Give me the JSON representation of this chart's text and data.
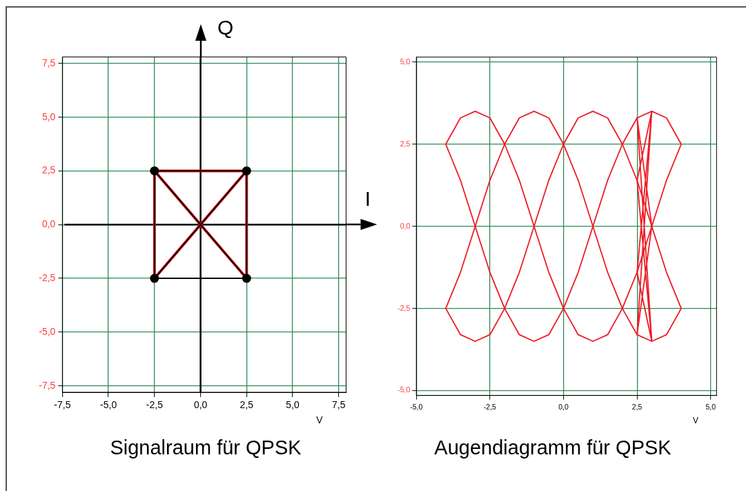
{
  "chart_data": [
    {
      "type": "line",
      "title": "Signalraum für QPSK",
      "xlabel": "V",
      "marker": "none",
      "grid": true,
      "xlim": [
        -7.5,
        7.9
      ],
      "ylim": [
        -7.8,
        7.8
      ],
      "xticks": [
        {
          "value": -7.5,
          "label": "-7,5"
        },
        {
          "value": -5,
          "label": "-5,0"
        },
        {
          "value": -2.5,
          "label": "-2,5"
        },
        {
          "value": 0,
          "label": "0,0"
        },
        {
          "value": 2.5,
          "label": "2,5"
        },
        {
          "value": 5,
          "label": "5,0"
        },
        {
          "value": 7.5,
          "label": "7,5"
        }
      ],
      "yticks": [
        {
          "value": -7.5,
          "label": "-7,5"
        },
        {
          "value": -5,
          "label": "-5,0"
        },
        {
          "value": -2.5,
          "label": "-2,5"
        },
        {
          "value": 0,
          "label": "0,0"
        },
        {
          "value": 2.5,
          "label": "2,5"
        },
        {
          "value": 5,
          "label": "5,0"
        },
        {
          "value": 7.5,
          "label": "7,5"
        }
      ],
      "ref_lines": [
        {
          "axis": "x",
          "value": 0,
          "label": "Q",
          "color": "#000000"
        },
        {
          "axis": "y",
          "value": 0,
          "label": "I",
          "color": "#000000"
        }
      ],
      "series": [
        {
          "color": "#ee1c25",
          "x": [
            -2.5,
            -2.5,
            2.5,
            2.5,
            -2.5,
            2.5
          ],
          "values": [
            2.5,
            -2.5,
            2.5,
            -2.5,
            2.5,
            2.5
          ]
        },
        {
          "color": "#000000",
          "x": [
            -2.5,
            2.5,
            2.5,
            -2.5,
            -2.5,
            2.5
          ],
          "values": [
            2.5,
            2.5,
            -2.5,
            -2.5,
            2.5,
            -2.5
          ]
        },
        {
          "color": "#000000",
          "x": [
            2.5,
            -2.5
          ],
          "values": [
            2.5,
            -2.5
          ]
        },
        {
          "type": "scatter",
          "color": "#000000",
          "marker": "circle",
          "x": [
            -2.5,
            2.5,
            -2.5,
            2.5
          ],
          "values": [
            2.5,
            2.5,
            -2.5,
            -2.5
          ]
        }
      ]
    },
    {
      "type": "line",
      "title": "Augendiagramm für QPSK",
      "xlabel": "V",
      "marker": "none",
      "grid": true,
      "xlim": [
        -5,
        5.2
      ],
      "ylim": [
        -5.15,
        5.15
      ],
      "xticks": [
        {
          "value": -5,
          "label": "-5,0"
        },
        {
          "value": -2.5,
          "label": "-2,5"
        },
        {
          "value": 0,
          "label": "0,0"
        },
        {
          "value": 2.5,
          "label": "2,5"
        },
        {
          "value": 5,
          "label": "5,0"
        }
      ],
      "yticks": [
        {
          "value": -5,
          "label": "-5,0"
        },
        {
          "value": -2.5,
          "label": "-2,5"
        },
        {
          "value": 0,
          "label": "0,0"
        },
        {
          "value": 2.5,
          "label": "2,5"
        },
        {
          "value": 5,
          "label": "5,0"
        }
      ],
      "x": [
        -4,
        -3.5,
        -3,
        -2.5,
        -2,
        -1.5,
        -1,
        -0.5,
        0,
        0.5,
        1,
        1.5,
        2,
        2.5,
        3,
        3.5,
        4
      ],
      "series": [
        {
          "color": "#ee1c25",
          "values": [
            2.5,
            3.3,
            3.5,
            3.3,
            2.5,
            1.4,
            0,
            -1.4,
            -2.5,
            -3.3,
            -3.5,
            -3.3,
            -2.5,
            -1.4,
            0,
            1.4,
            2.5
          ]
        },
        {
          "color": "#ee1c25",
          "values": [
            2.5,
            1.4,
            0,
            -1.4,
            -2.5,
            -3.3,
            -3.5,
            -3.3,
            -2.5,
            -1.4,
            0,
            1.4,
            2.5,
            3.3,
            3.5,
            3.3,
            2.5
          ]
        },
        {
          "color": "#ee1c25",
          "values": [
            -2.5,
            -3.3,
            -3.5,
            -3.3,
            -2.5,
            -1.4,
            0,
            1.4,
            2.5,
            3.3,
            3.5,
            3.3,
            2.5,
            1.4,
            0,
            -1.4,
            -2.5
          ]
        },
        {
          "color": "#ee1c25",
          "values": [
            -2.5,
            -1.4,
            0,
            1.4,
            2.5,
            3.3,
            3.5,
            3.3,
            2.5,
            1.4,
            0,
            -1.4,
            -2.5,
            -3.3,
            -3.5,
            -3.3,
            -2.5
          ]
        },
        {
          "color": "#ee1c25",
          "x": [
            3,
            2.5,
            3,
            2.5,
            3,
            2.5,
            3,
            2.5,
            3
          ],
          "values": [
            3.5,
            1.4,
            -3.5,
            3.3,
            0,
            -3.3,
            3.5,
            -1.4,
            -3.5
          ]
        }
      ]
    }
  ]
}
